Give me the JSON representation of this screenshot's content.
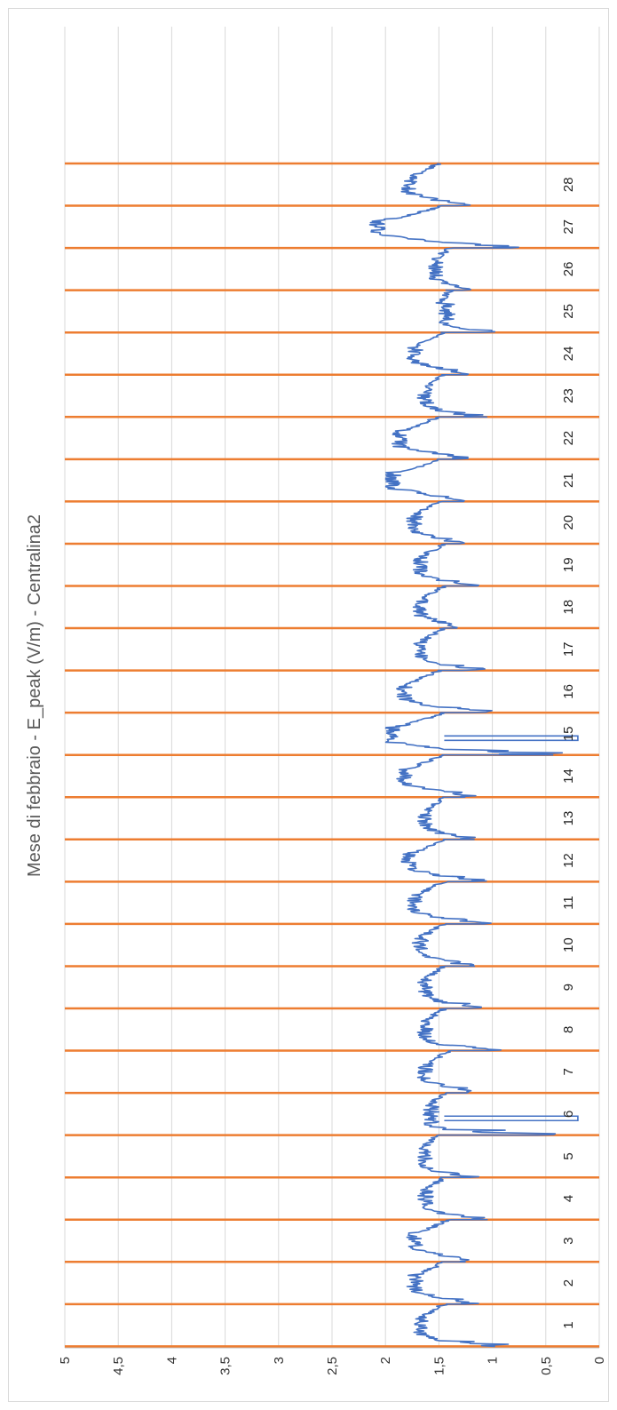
{
  "chart_data": {
    "type": "line",
    "title": "Mese di febbraio - E_peak (V/m) - Centralina2",
    "xlabel": "",
    "ylabel": "",
    "ylim": [
      0,
      5
    ],
    "y_ticks": [
      "0",
      "0,5",
      "1",
      "1,5",
      "2",
      "2,5",
      "3",
      "3,5",
      "4",
      "4,5",
      "5"
    ],
    "grid": true,
    "orientation": "rotated-90",
    "categories": [
      "1",
      "2",
      "3",
      "4",
      "5",
      "6",
      "7",
      "8",
      "9",
      "10",
      "11",
      "12",
      "13",
      "14",
      "15",
      "16",
      "17",
      "18",
      "19",
      "20",
      "21",
      "22",
      "23",
      "24",
      "25",
      "26",
      "27",
      "28"
    ],
    "day_separator_color": "#ED7D31",
    "series": [
      {
        "color": "#4472C4",
        "daily_profile": [
          {
            "day": 1,
            "min": 0.85,
            "night": 1.45,
            "max": 1.8
          },
          {
            "day": 2,
            "min": 1.05,
            "night": 1.45,
            "max": 1.85
          },
          {
            "day": 3,
            "min": 1.15,
            "night": 1.4,
            "max": 1.85
          },
          {
            "day": 4,
            "min": 1.0,
            "night": 1.45,
            "max": 1.75
          },
          {
            "day": 5,
            "min": 1.1,
            "night": 1.5,
            "max": 1.75
          },
          {
            "day": 6,
            "min": 0.2,
            "night": 1.45,
            "max": 1.7
          },
          {
            "day": 7,
            "min": 1.05,
            "night": 1.4,
            "max": 1.75
          },
          {
            "day": 8,
            "min": 0.85,
            "night": 1.45,
            "max": 1.75
          },
          {
            "day": 9,
            "min": 0.9,
            "night": 1.45,
            "max": 1.75
          },
          {
            "day": 10,
            "min": 1.15,
            "night": 1.45,
            "max": 1.8
          },
          {
            "day": 11,
            "min": 1.0,
            "night": 1.45,
            "max": 1.85
          },
          {
            "day": 12,
            "min": 1.0,
            "night": 1.45,
            "max": 1.9
          },
          {
            "day": 13,
            "min": 1.15,
            "night": 1.45,
            "max": 1.75
          },
          {
            "day": 14,
            "min": 1.1,
            "night": 1.45,
            "max": 1.95
          },
          {
            "day": 15,
            "min": 0.2,
            "night": 1.45,
            "max": 2.05
          },
          {
            "day": 16,
            "min": 0.9,
            "night": 1.5,
            "max": 1.95
          },
          {
            "day": 17,
            "min": 1.05,
            "night": 1.45,
            "max": 1.8
          },
          {
            "day": 18,
            "min": 1.3,
            "night": 1.45,
            "max": 1.8
          },
          {
            "day": 19,
            "min": 1.1,
            "night": 1.45,
            "max": 1.8
          },
          {
            "day": 20,
            "min": 1.25,
            "night": 1.5,
            "max": 1.85
          },
          {
            "day": 21,
            "min": 1.25,
            "night": 1.5,
            "max": 2.05
          },
          {
            "day": 22,
            "min": 1.2,
            "night": 1.5,
            "max": 2.0
          },
          {
            "day": 23,
            "min": 1.05,
            "night": 1.45,
            "max": 1.75
          },
          {
            "day": 24,
            "min": 1.2,
            "night": 1.45,
            "max": 1.85
          },
          {
            "day": 25,
            "min": 0.95,
            "night": 1.4,
            "max": 1.55
          },
          {
            "day": 26,
            "min": 1.2,
            "night": 1.4,
            "max": 1.65
          },
          {
            "day": 27,
            "min": 0.75,
            "night": 1.45,
            "max": 2.2
          },
          {
            "day": 28,
            "min": 1.15,
            "night": 1.5,
            "max": 1.9
          }
        ]
      }
    ]
  }
}
